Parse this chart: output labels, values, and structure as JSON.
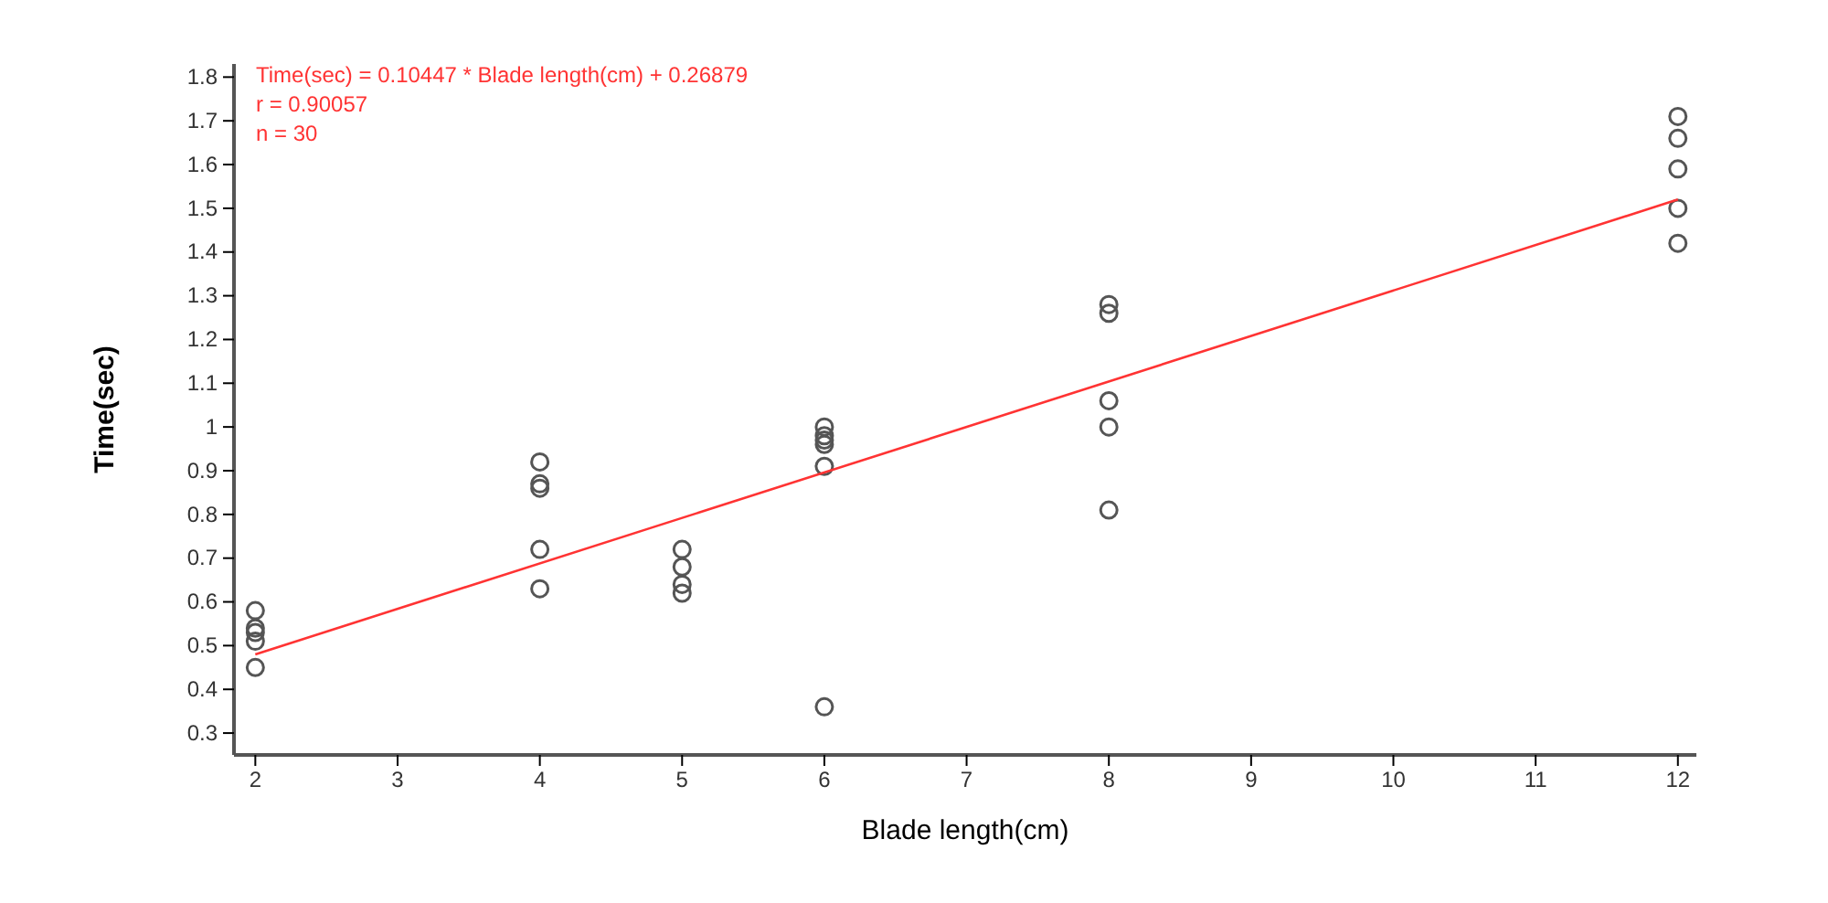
{
  "chart_data": {
    "type": "scatter",
    "xlabel": "Blade length(cm)",
    "ylabel": "Time(sec)",
    "xlim": [
      1.85,
      12.13
    ],
    "xticks": [
      2,
      3,
      4,
      5,
      6,
      7,
      8,
      9,
      10,
      11,
      12
    ],
    "ylim": [
      0.25,
      1.83
    ],
    "yticks": [
      {
        "value": 0.3,
        "label": "0.3"
      },
      {
        "value": 0.4,
        "label": "0.4"
      },
      {
        "value": 0.5,
        "label": "0.5"
      },
      {
        "value": 0.6,
        "label": "0.6"
      },
      {
        "value": 0.7,
        "label": "0.7"
      },
      {
        "value": 0.8,
        "label": "0.8"
      },
      {
        "value": 0.9,
        "label": "0.9"
      },
      {
        "value": 1,
        "label": "1"
      },
      {
        "value": 1.1,
        "label": "1.1"
      },
      {
        "value": 1.2,
        "label": "1.2"
      },
      {
        "value": 1.3,
        "label": "1.3"
      },
      {
        "value": 1.4,
        "label": "1.4"
      },
      {
        "value": 1.5,
        "label": "1.5"
      },
      {
        "value": 1.6,
        "label": "1.6"
      },
      {
        "value": 1.7,
        "label": "1.7"
      },
      {
        "value": 1.8,
        "label": "1.8"
      }
    ],
    "grid": false,
    "marker": "circle",
    "series": [
      {
        "color": "#555555",
        "x": [
          2,
          2,
          2,
          2,
          2,
          4,
          4,
          4,
          4,
          4,
          5,
          5,
          5,
          5,
          6,
          6,
          6,
          6,
          6,
          6,
          8,
          8,
          8,
          8,
          8,
          12,
          12,
          12,
          12,
          12
        ],
        "values": [
          0.58,
          0.54,
          0.53,
          0.51,
          0.45,
          0.92,
          0.87,
          0.86,
          0.72,
          0.63,
          0.72,
          0.68,
          0.64,
          0.62,
          1.0,
          0.98,
          0.97,
          0.96,
          0.91,
          0.36,
          1.28,
          1.26,
          1.06,
          1.0,
          0.81,
          1.71,
          1.66,
          1.59,
          1.5,
          1.42
        ]
      },
      {
        "type": "line",
        "color": "#ff3333",
        "x": [
          2,
          12
        ],
        "values": [
          0.48,
          1.52
        ],
        "line_style": "solid",
        "marker": "none"
      }
    ],
    "annotations": [
      "Time(sec) = 0.10447 * Blade length(cm) + 0.26879",
      "r = 0.90057",
      "n = 30"
    ]
  }
}
